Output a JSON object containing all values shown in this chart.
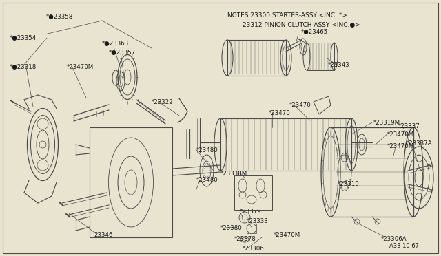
{
  "bg_color": "#e8e4d0",
  "line_color": "#4a4a4a",
  "text_color": "#1a1a1a",
  "notes_line1": "NOTES:23300 STARTER-ASSY <INC. *>",
  "notes_line2": "23312 PINION CLUTCH ASSY <INC.●>",
  "diagram_code": "A33 10 67",
  "border_color": "#888888",
  "figsize": [
    6.4,
    3.72
  ],
  "dpi": 100
}
